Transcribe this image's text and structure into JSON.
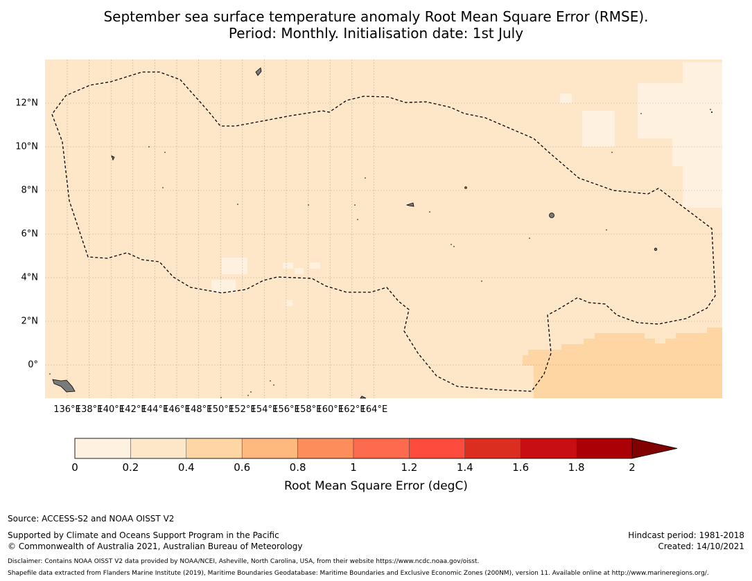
{
  "title": {
    "line1": "September sea surface temperature anomaly Root Mean Square Error (RMSE).",
    "line2": "Period: Monthly. Initialisation date: 1st July"
  },
  "map": {
    "lon_ticks": [
      "136°E",
      "138°E",
      "140°E",
      "142°E",
      "144°E",
      "146°E",
      "148°E",
      "150°E",
      "152°E",
      "154°E",
      "156°E",
      "158°E",
      "160°E",
      "162°E",
      "164°E"
    ],
    "lat_ticks": [
      "12°N",
      "10°N",
      "8°N",
      "6°N",
      "4°N",
      "2°N",
      "0°"
    ],
    "background_color": "#fee6c9",
    "low_color": "#fff1df",
    "mid_color": "#fdd6a4",
    "eez_style": "dashed black"
  },
  "colorbar": {
    "ticks": [
      "0",
      "0.2",
      "0.4",
      "0.6",
      "0.8",
      "1",
      "1.2",
      "1.4",
      "1.6",
      "1.8",
      "2"
    ],
    "colors": [
      "#fff1df",
      "#fee6c9",
      "#fdd6a4",
      "#fdb97e",
      "#fd8d5a",
      "#fe6a4d",
      "#fd4b3e",
      "#dc2d21",
      "#c90e13",
      "#ac0007"
    ],
    "extend_color": "#800000",
    "label": "Root Mean Square Error (degC)"
  },
  "footer": {
    "source": "Source: ACCESS-S2 and NOAA OISST V2",
    "supported": "Supported by Climate and Oceans Support Program in the Pacific",
    "copyright": "© Commonwealth of Australia 2021, Australian Bureau of Meteorology",
    "hindcast": "Hindcast period: 1981-2018",
    "created": "Created: 14/10/2021",
    "disclaimer": "Disclaimer: Contains NOAA OISST V2 data provided by NOAA/NCEI, Asheville, North Carolina, USA, from their website https://www.ncdc.noaa.gov/oisst.",
    "shapefile": "Shapefile data extracted from Flanders Marine Institute (2019), Maritime Boundaries Geodatabase: Maritime Boundaries and Exclusive Economic Zones (200NM), version 11. Available online at http://www.marineregions.org/."
  }
}
